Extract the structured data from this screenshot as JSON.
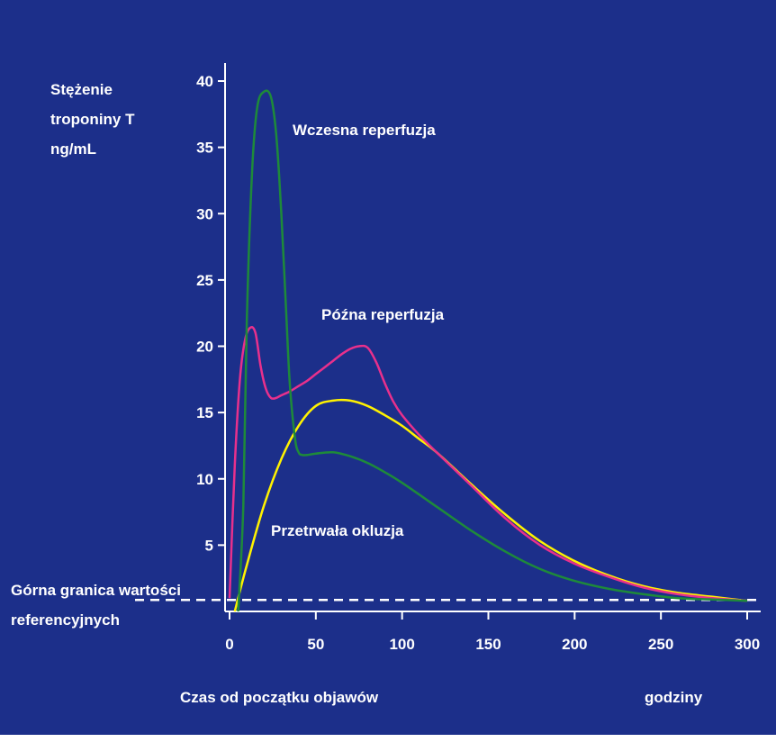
{
  "chart_data": {
    "type": "line",
    "title": "",
    "ylabel": [
      "Stężenie",
      "troponiny T",
      "ng/mL"
    ],
    "xlabel": "Czas od początku objawów",
    "xunit": "godziny",
    "xlim": [
      0,
      300
    ],
    "ylim": [
      0,
      40
    ],
    "xticks": [
      0,
      50,
      100,
      150,
      200,
      250,
      300
    ],
    "yticks": [
      5,
      10,
      15,
      20,
      25,
      30,
      35,
      40
    ],
    "reference_line": {
      "label": [
        "Górna granica wartości",
        "referencyjnych"
      ],
      "y": 0.8
    },
    "series": [
      {
        "name": "Wczesna reperfuzja",
        "color": "#1e8a3a",
        "x": [
          5,
          8,
          10,
          13,
          16,
          20,
          24,
          27,
          30,
          33,
          35,
          38,
          40,
          42,
          45,
          50,
          60,
          70,
          80,
          90,
          100,
          120,
          140,
          160,
          180,
          200,
          220,
          240,
          260,
          280,
          300
        ],
        "y": [
          0,
          8,
          22,
          33,
          38,
          39.2,
          38.8,
          36,
          30,
          22,
          17,
          13,
          12,
          11.8,
          11.8,
          11.9,
          12,
          11.7,
          11.2,
          10.5,
          9.7,
          7.9,
          6.1,
          4.5,
          3.2,
          2.3,
          1.7,
          1.3,
          1.0,
          0.9,
          0.8
        ]
      },
      {
        "name": "Późna reperfuzja",
        "color": "#e8308c",
        "x": [
          0,
          3,
          6,
          9,
          12,
          15,
          18,
          21,
          24,
          27,
          30,
          35,
          40,
          45,
          50,
          55,
          60,
          65,
          70,
          75,
          80,
          85,
          90,
          95,
          100,
          110,
          120,
          140,
          160,
          180,
          200,
          220,
          240,
          260,
          280,
          300
        ],
        "y": [
          1,
          11,
          17.5,
          20.5,
          21.4,
          21,
          18.5,
          16.8,
          16.1,
          16.1,
          16.3,
          16.6,
          17,
          17.4,
          17.9,
          18.4,
          18.9,
          19.4,
          19.8,
          20,
          19.9,
          18.8,
          17.2,
          15.8,
          14.8,
          13.3,
          12,
          9.5,
          7,
          5,
          3.6,
          2.6,
          1.8,
          1.3,
          1.0,
          0.8
        ]
      },
      {
        "name": "Przetrwała okluzja",
        "color": "#fff200",
        "x": [
          3,
          10,
          20,
          30,
          40,
          50,
          60,
          70,
          80,
          90,
          100,
          110,
          120,
          140,
          160,
          180,
          200,
          220,
          240,
          260,
          280,
          300
        ],
        "y": [
          0,
          3.5,
          8,
          11.5,
          14,
          15.5,
          15.9,
          15.9,
          15.5,
          14.8,
          14,
          13,
          12,
          9.6,
          7.3,
          5.3,
          3.8,
          2.7,
          1.9,
          1.4,
          1.1,
          0.8
        ]
      }
    ],
    "annotations": [
      {
        "text": "Wczesna reperfuzja",
        "x": 40,
        "y": 36
      },
      {
        "text": "Późna reperfuzja",
        "x": 55,
        "y": 22
      },
      {
        "text": "Przetrwała okluzja",
        "x": 25,
        "y": 5.5
      }
    ],
    "grid": false,
    "colors": {
      "background": "#1c2f8a",
      "axis": "#ffffff",
      "reference_line": "#ffffff"
    }
  }
}
